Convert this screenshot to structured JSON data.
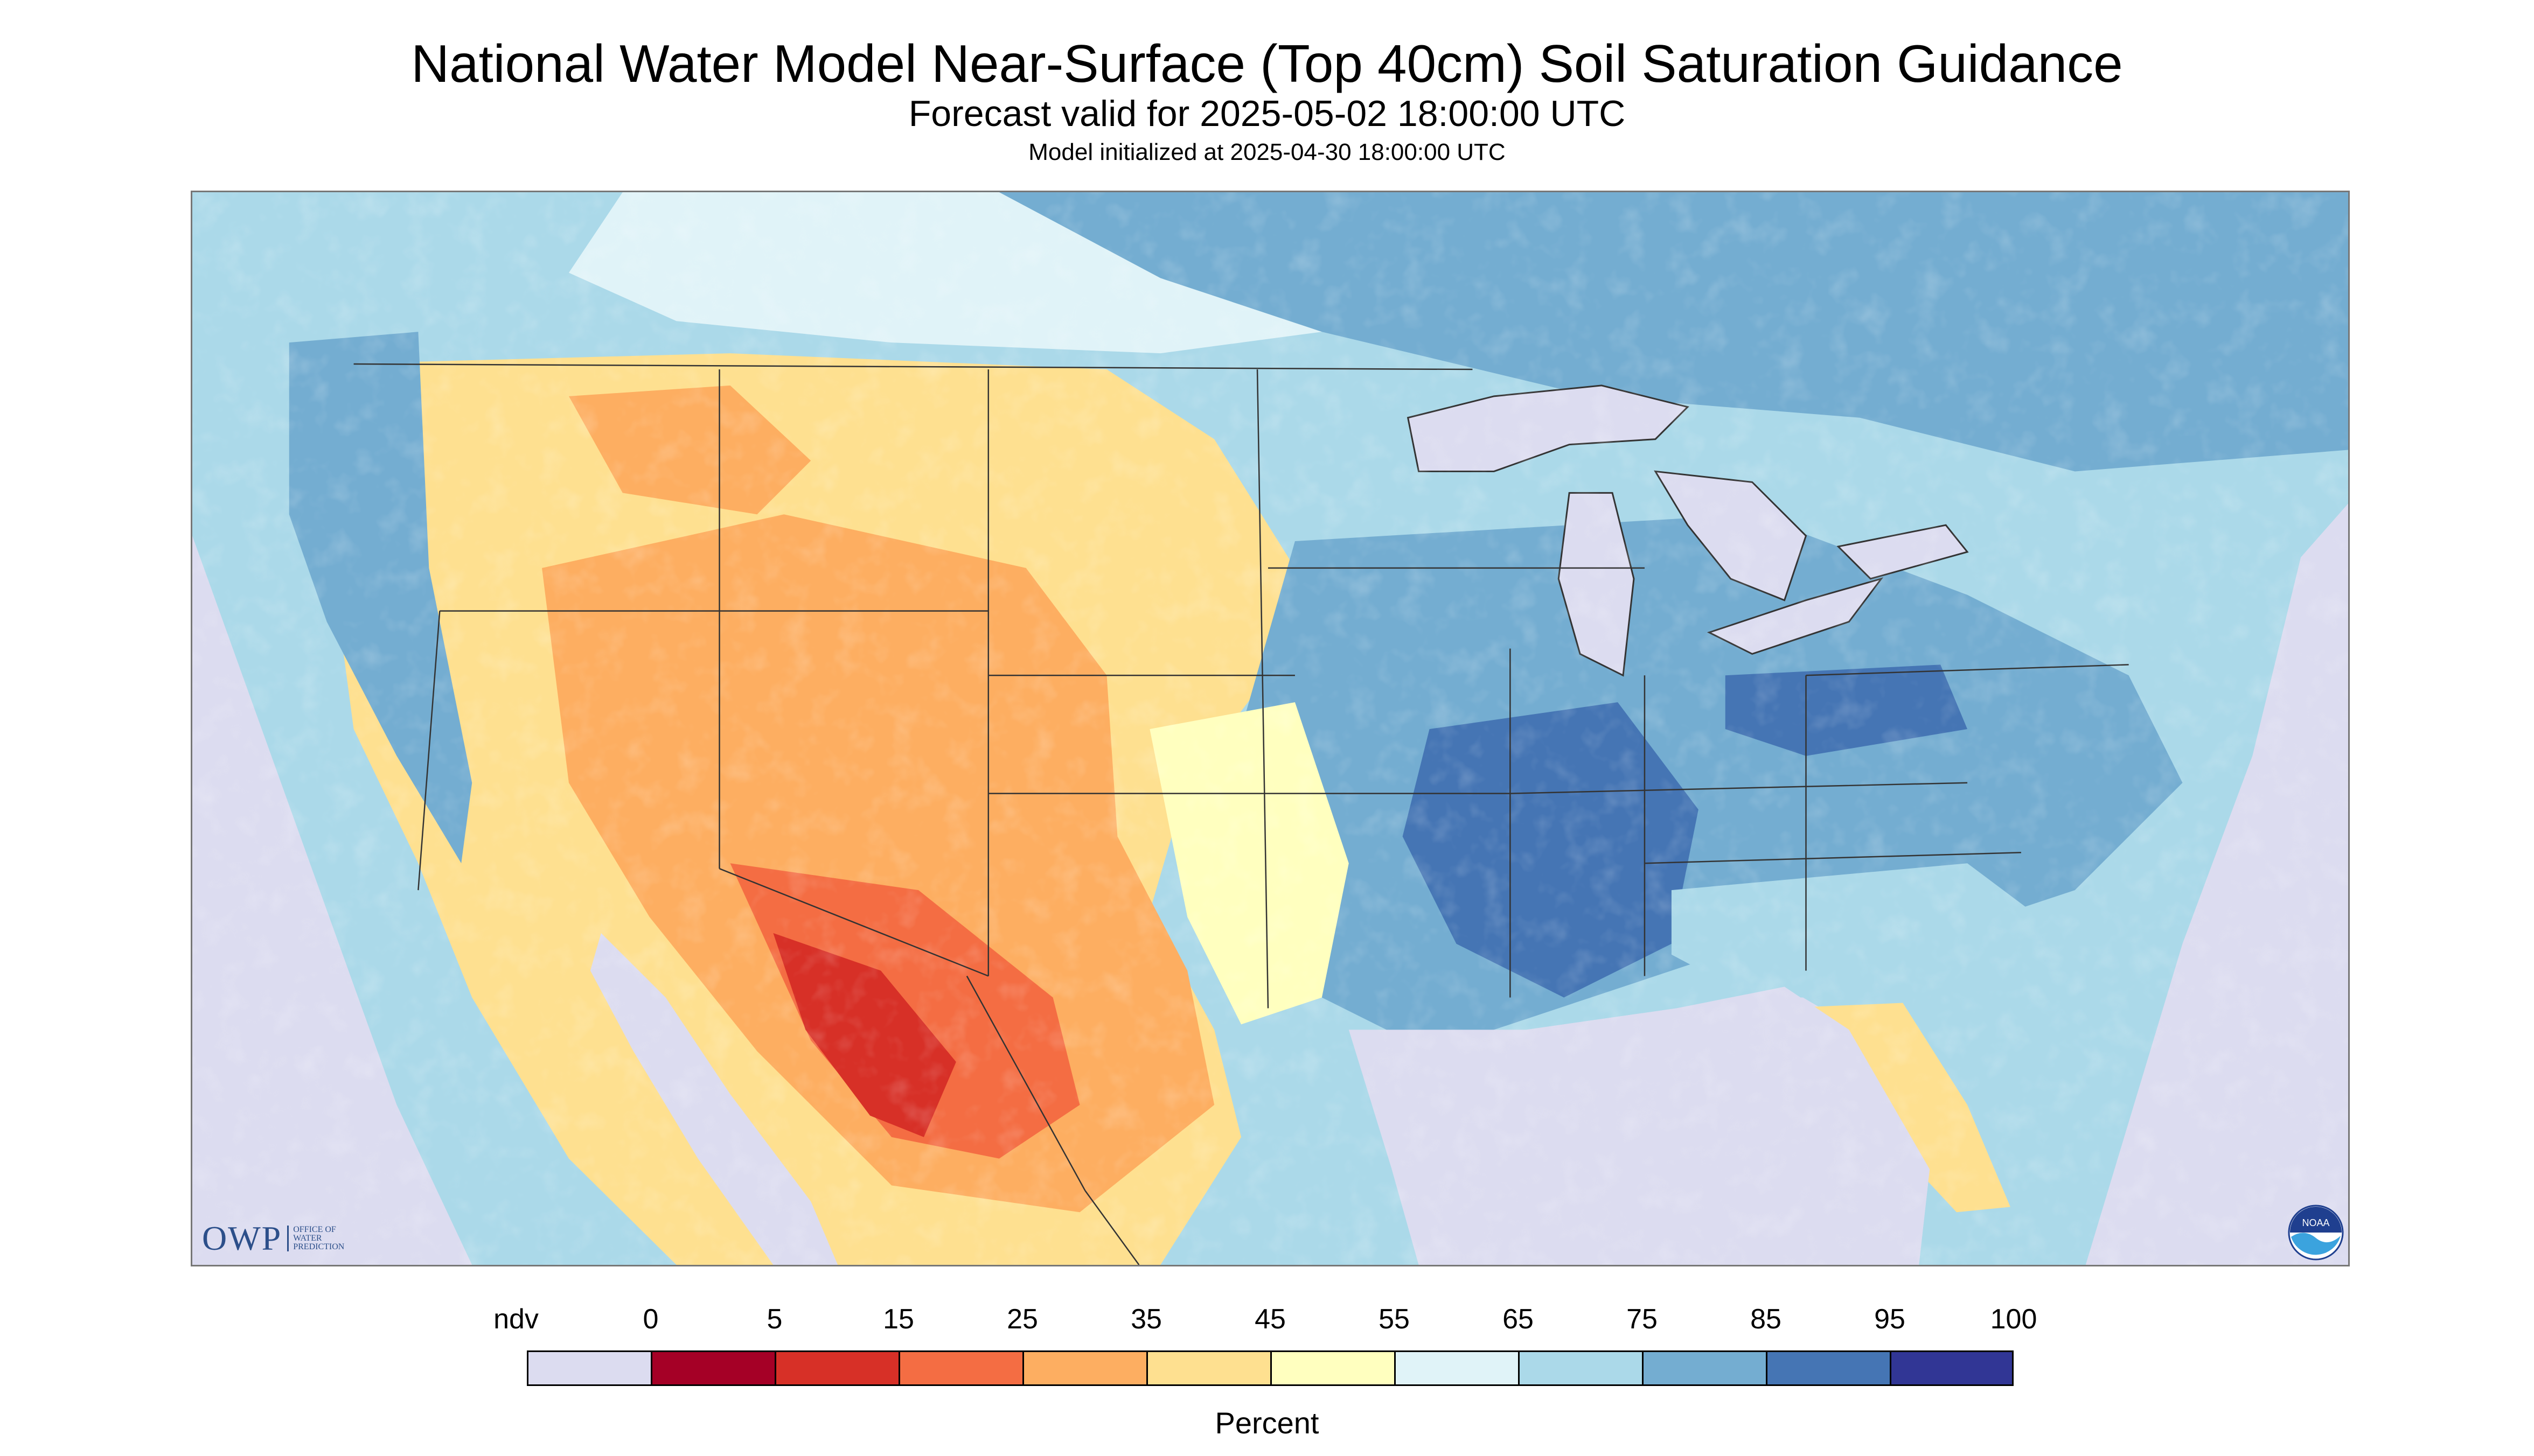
{
  "header": {
    "title": "National Water Model Near-Surface (Top 40cm) Soil Saturation Guidance",
    "valid": "Forecast valid for 2025-05-02 18:00:00 UTC",
    "initialized": "Model initialized at 2025-04-30 18:00:00 UTC"
  },
  "logos": {
    "owp_text": "OWP",
    "owp_lines": [
      "OFFICE OF",
      "WATER",
      "PREDICTION"
    ],
    "noaa_text": "NOAA"
  },
  "legend": {
    "title": "Percent",
    "bins": [
      {
        "label": "ndv",
        "color": "#dcdcf0"
      },
      {
        "label": "0",
        "color": "#a50026"
      },
      {
        "label": "5",
        "color": "#d73027"
      },
      {
        "label": "15",
        "color": "#f46d43"
      },
      {
        "label": "25",
        "color": "#fdae61"
      },
      {
        "label": "35",
        "color": "#fee090"
      },
      {
        "label": "45",
        "color": "#ffffbf"
      },
      {
        "label": "55",
        "color": "#e0f3f8"
      },
      {
        "label": "65",
        "color": "#abd9e9"
      },
      {
        "label": "75",
        "color": "#74add1"
      },
      {
        "label": "85",
        "color": "#4575b4"
      },
      {
        "label": "95",
        "color": "#313695"
      }
    ],
    "end_label": "100"
  },
  "colors": {
    "water": "#dcdcf0",
    "no_data": "#dcdcf0",
    "border": "#333333"
  }
}
